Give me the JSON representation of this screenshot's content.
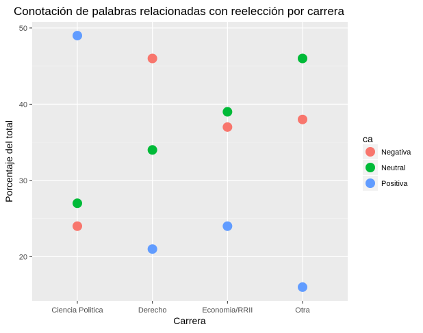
{
  "chart_data": {
    "type": "scatter",
    "title": "Conotación de palabras relacionadas con reelección por carrera",
    "xlabel": "Carrera",
    "ylabel": "Porcentaje del total",
    "categories": [
      "Ciencia Politica",
      "Derecho",
      "Economia/RRII",
      "Otra"
    ],
    "ylim": [
      14.2,
      50.8
    ],
    "yticks": [
      20,
      30,
      40,
      50
    ],
    "grid": true,
    "legend": {
      "title": "ca",
      "placement": "right"
    },
    "series": [
      {
        "name": "Negativa",
        "color": "#F8766D",
        "values": [
          24,
          46,
          37,
          38
        ]
      },
      {
        "name": "Neutral",
        "color": "#00BA38",
        "values": [
          27,
          34,
          39,
          46
        ]
      },
      {
        "name": "Positiva",
        "color": "#619CFF",
        "values": [
          49,
          21,
          24,
          16
        ]
      }
    ]
  }
}
